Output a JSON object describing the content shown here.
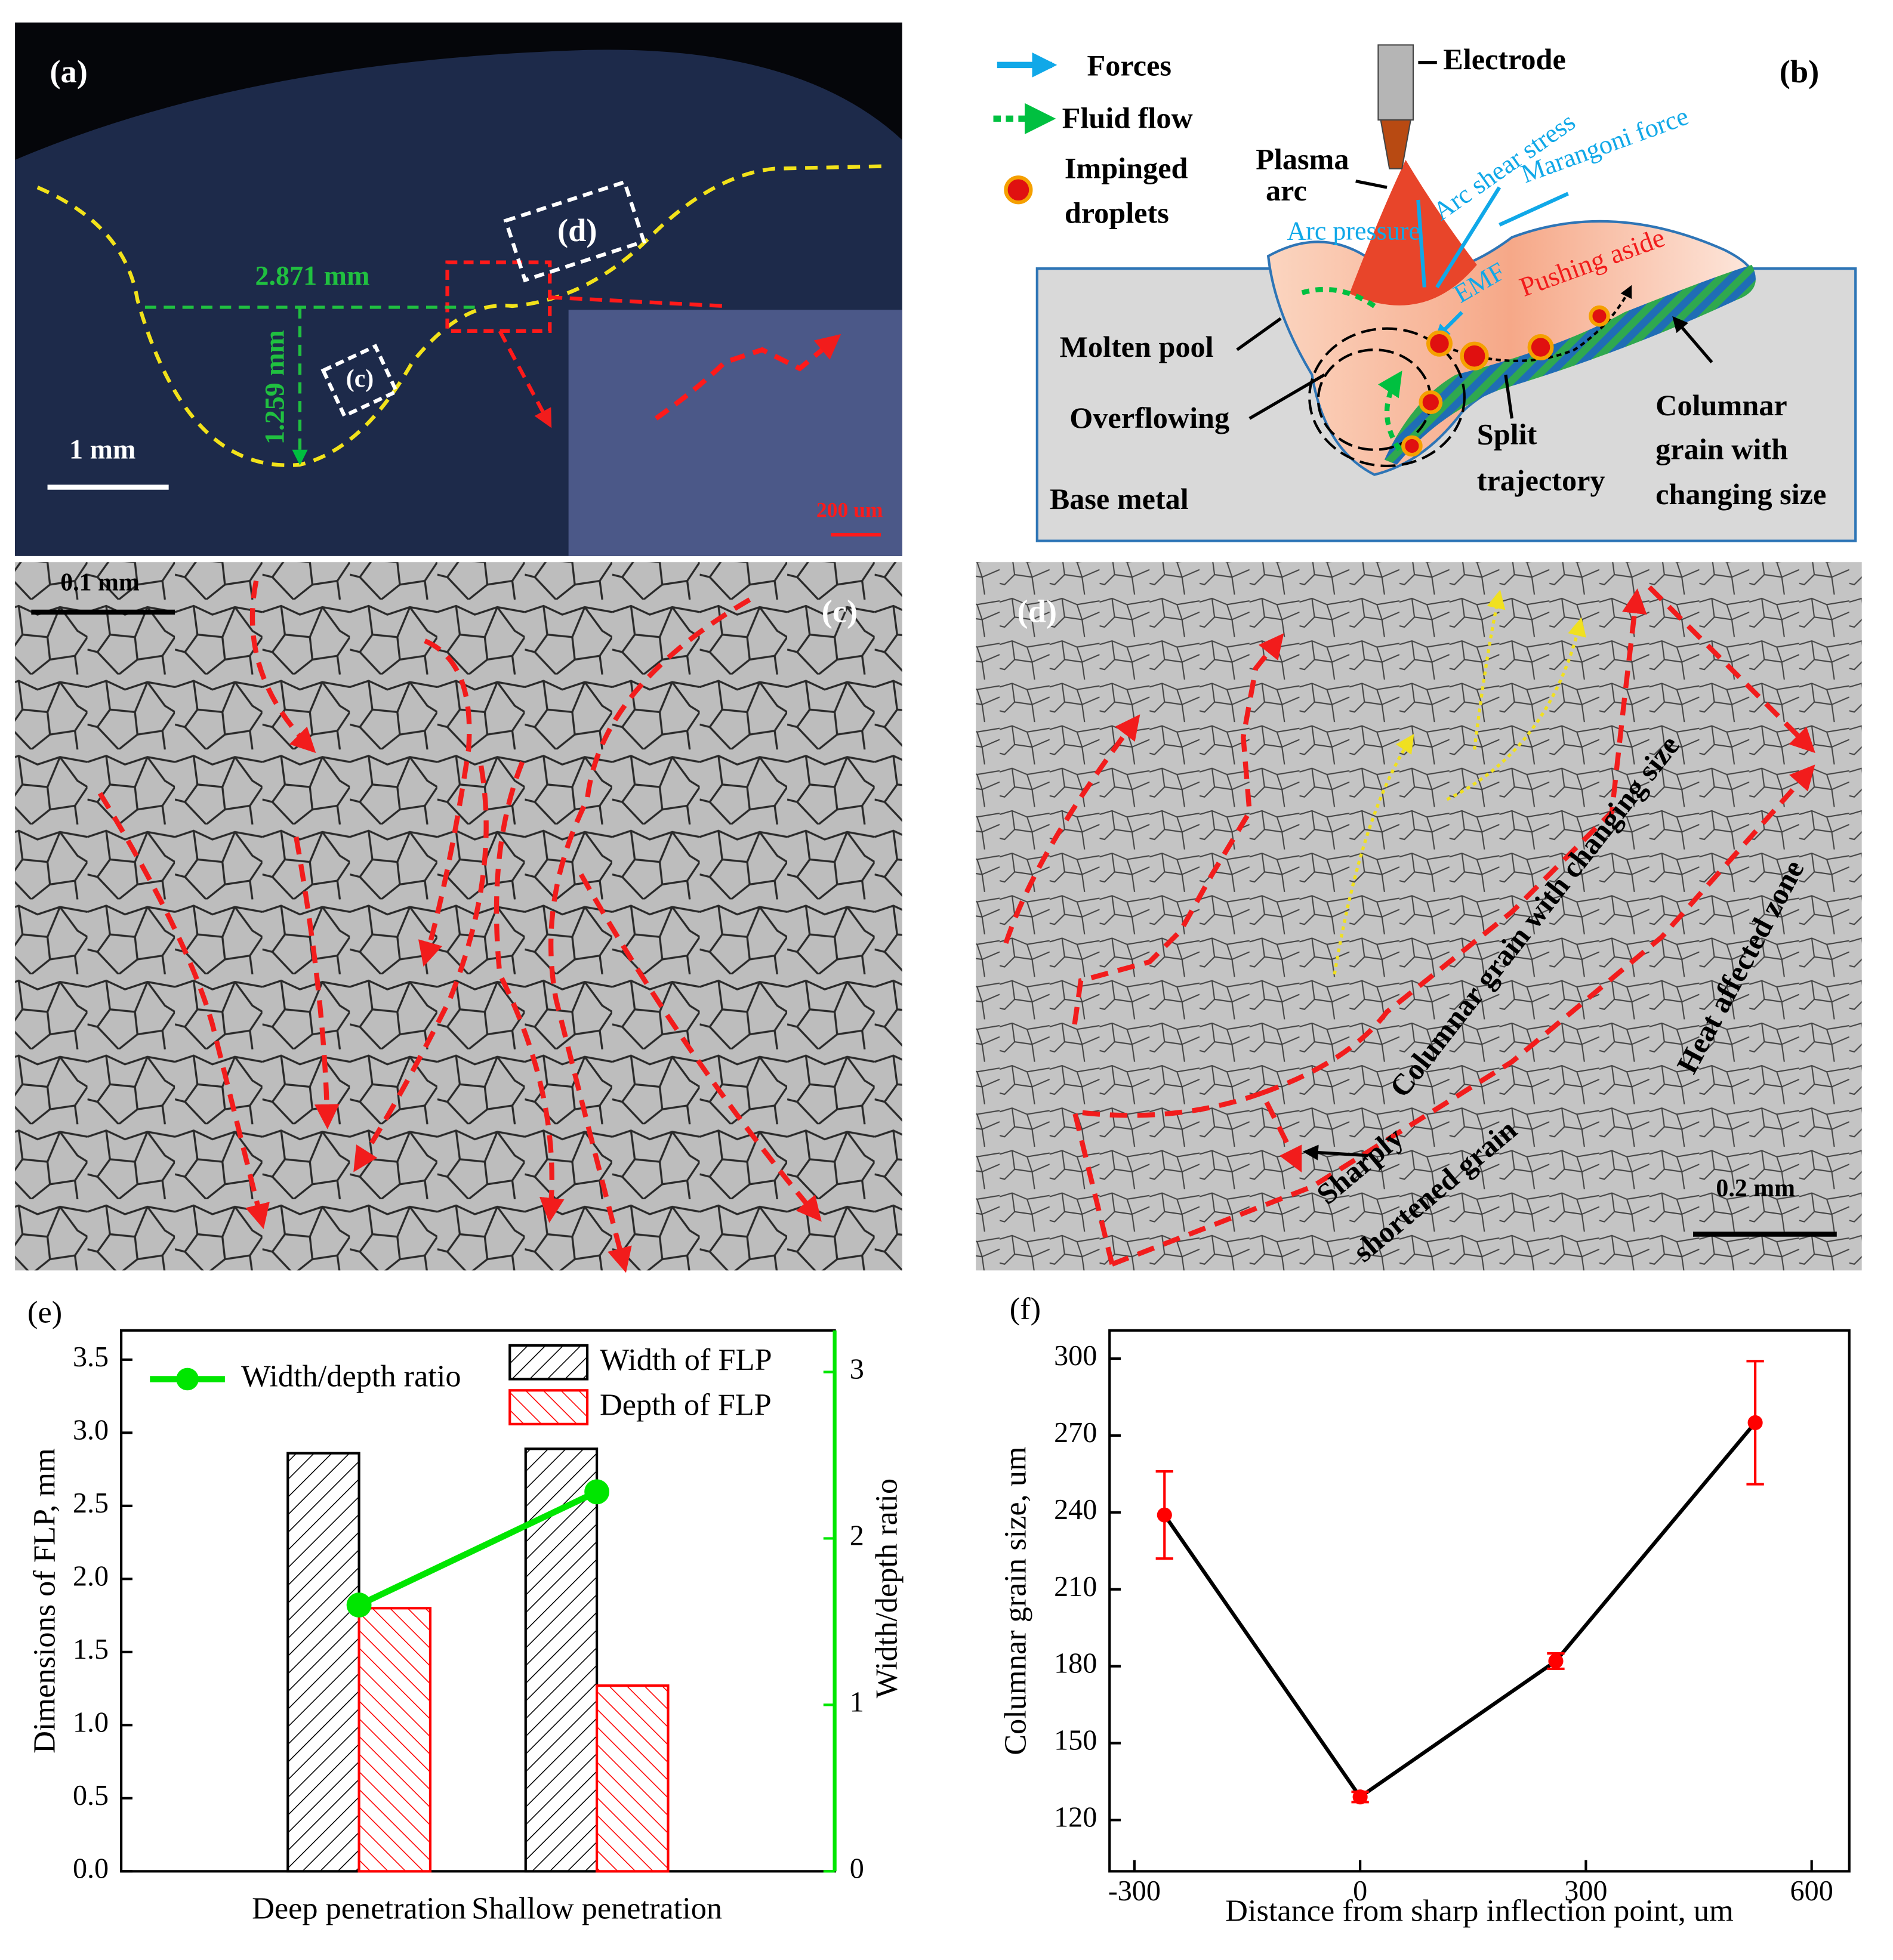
{
  "panels": {
    "a": {
      "label": "(a)",
      "width_label": "2.871 mm",
      "depth_label": "1.259 mm",
      "box_c": "(c)",
      "box_d": "(d)",
      "scale_bar": "1 mm",
      "inset_scale_bar": "200 um"
    },
    "b": {
      "label": "(b)",
      "forces": "Forces",
      "fluid_flow": "Fluid flow",
      "impinged_1": "Impinged",
      "impinged_2": "droplets",
      "electrode": "Electrode",
      "plasma_1": "Plasma",
      "plasma_2": "arc",
      "arc_pressure": "Arc pressure",
      "arc_shear": "Arc shear stress",
      "marangoni": "Marangoni force",
      "emf": "EMF",
      "pushing": "Pushing aside",
      "molten_pool": "Molten pool",
      "overflowing": "Overflowing",
      "base_metal": "Base metal",
      "split_1": "Split",
      "split_2": "trajectory",
      "columnar_1": "Columnar",
      "columnar_2": "grain with",
      "columnar_3": "changing size"
    },
    "c": {
      "label": "(c)",
      "scale_bar": "0.1 mm"
    },
    "d": {
      "label": "(d)",
      "columnar": "Columnar grain with changing size",
      "haz": "Heat affected zone",
      "sharply_1": "Sharply",
      "sharply_2": "shortened grain",
      "scale_bar": "0.2 mm"
    }
  },
  "chart_data": [
    {
      "type": "bar",
      "label": "(e)",
      "categories": [
        "Deep penetration",
        "Shallow penetration"
      ],
      "series": [
        {
          "name": "Width of FLP",
          "color": "#000000",
          "values": [
            2.86,
            2.89
          ]
        },
        {
          "name": "Depth of FLP",
          "color": "#ff0000",
          "values": [
            1.8,
            1.27
          ]
        },
        {
          "name": "Width/depth ratio",
          "color": "#00e600",
          "type": "line",
          "axis": "y2",
          "values": [
            1.6,
            2.28
          ]
        }
      ],
      "ylabel": "Dimensions of  FLP, mm",
      "y2label": "Width/depth ratio",
      "ylim": [
        0,
        3.7
      ],
      "yticks": [
        {
          "value": 0,
          "label": "0.0"
        },
        0.5,
        {
          "value": 1,
          "label": "1.0"
        },
        1.5,
        {
          "value": 2,
          "label": "2.0"
        },
        2.5,
        {
          "value": 3,
          "label": "3.0"
        },
        3.5
      ],
      "y2lim": [
        0,
        3.25
      ],
      "y2ticks": [
        0,
        1,
        2,
        3
      ],
      "hatch": true
    },
    {
      "type": "line",
      "label": "(f)",
      "x": [
        -260,
        0,
        260,
        525
      ],
      "series": [
        {
          "color": "#000000",
          "marker_color": "#ff0000",
          "values": [
            239,
            129,
            182,
            275
          ],
          "errors": [
            17,
            2,
            3,
            24
          ]
        }
      ],
      "xlabel": "Distance from sharp inflection point, um",
      "ylabel": "Columnar grain size, um",
      "xlim": [
        -333,
        650
      ],
      "xticks": [
        -300,
        0,
        300,
        600
      ],
      "ylim": [
        100,
        311
      ],
      "yticks": [
        120,
        150,
        180,
        210,
        240,
        270,
        300
      ]
    }
  ]
}
